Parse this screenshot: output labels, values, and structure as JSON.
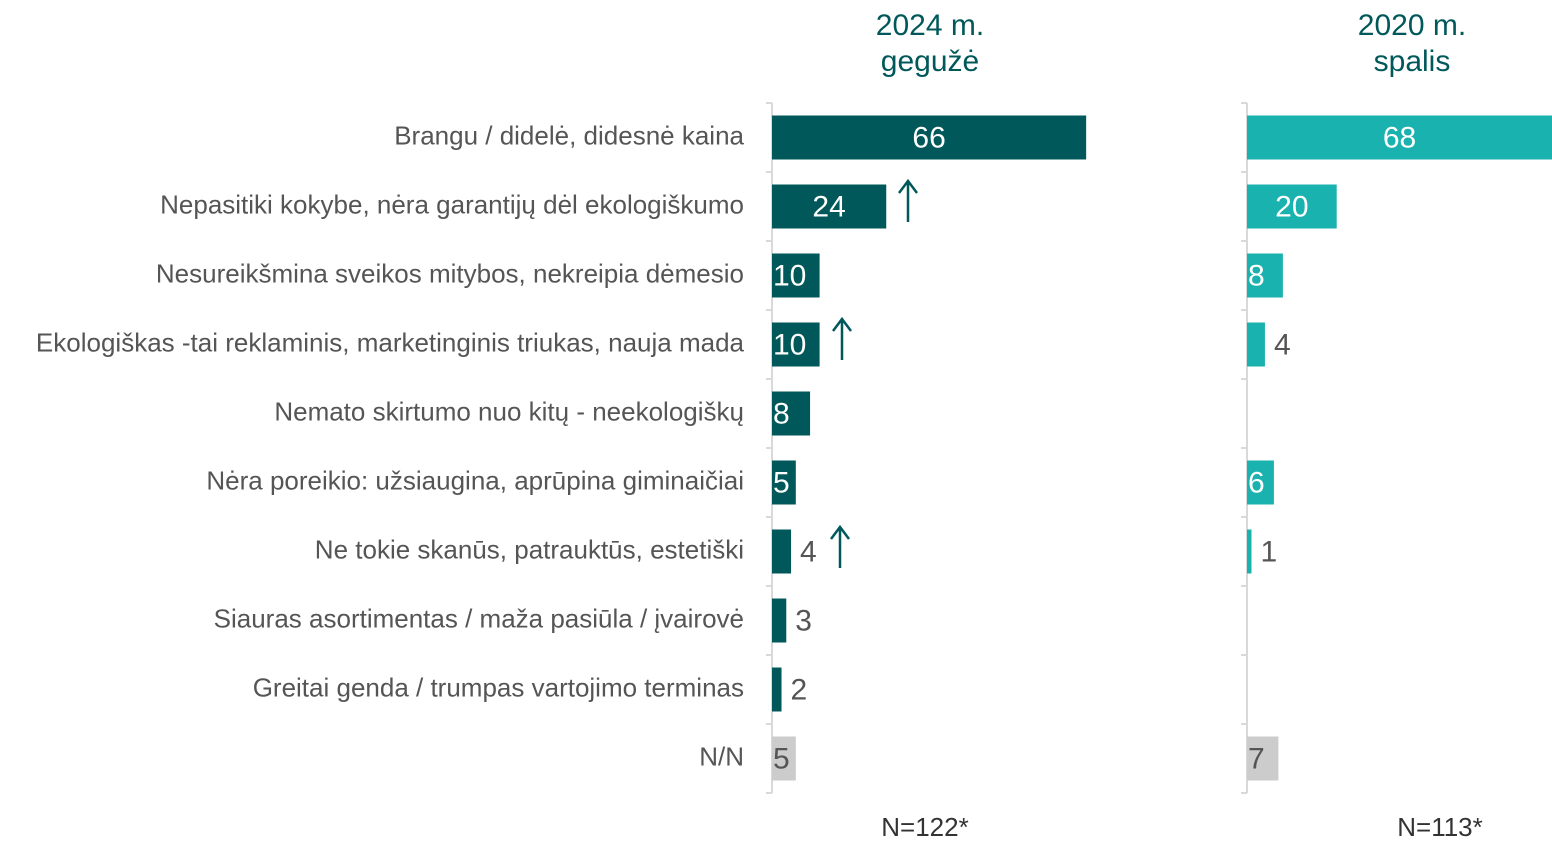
{
  "chart_data": [
    {
      "type": "bar",
      "orientation": "horizontal",
      "title": "2024 m. gegužė",
      "footnote": "N=122*",
      "categories": [
        "Brangu / didelė, didesnė kaina",
        "Nepasitiki kokybe, nėra garantijų dėl ekologiškumo",
        "Nesureikšmina sveikos mitybos, nekreipia dėmesio",
        "Ekologiškas -tai reklaminis, marketinginis triukas, nauja mada",
        "Nemato skirtumo nuo kitų - neekologiškų",
        "Nėra poreikio: užsiaugina, aprūpina giminaičiai",
        "Ne tokie skanūs, patrauktūs, estetiški",
        "Siauras asortimentas / maža pasiūla / įvairovė",
        "Greitai genda / trumpas vartojimo terminas",
        "N/N"
      ],
      "values": [
        66,
        24,
        10,
        10,
        8,
        5,
        4,
        3,
        2,
        5
      ],
      "colors": [
        "#00585a",
        "#00585a",
        "#00585a",
        "#00585a",
        "#00585a",
        "#00585a",
        "#00585a",
        "#00585a",
        "#00585a",
        "#cccccc"
      ],
      "xlim": [
        0,
        100
      ]
    },
    {
      "type": "bar",
      "orientation": "horizontal",
      "title": "2020 m. spalis",
      "footnote": "N=113*",
      "values": [
        68,
        20,
        8,
        4,
        null,
        6,
        1,
        null,
        null,
        7
      ],
      "colors": [
        "#1ab2ae",
        "#1ab2ae",
        "#1ab2ae",
        "#1ab2ae",
        "#1ab2ae",
        "#1ab2ae",
        "#1ab2ae",
        "#1ab2ae",
        "#1ab2ae",
        "#cccccc"
      ],
      "xlim": [
        0,
        68
      ]
    }
  ]
}
